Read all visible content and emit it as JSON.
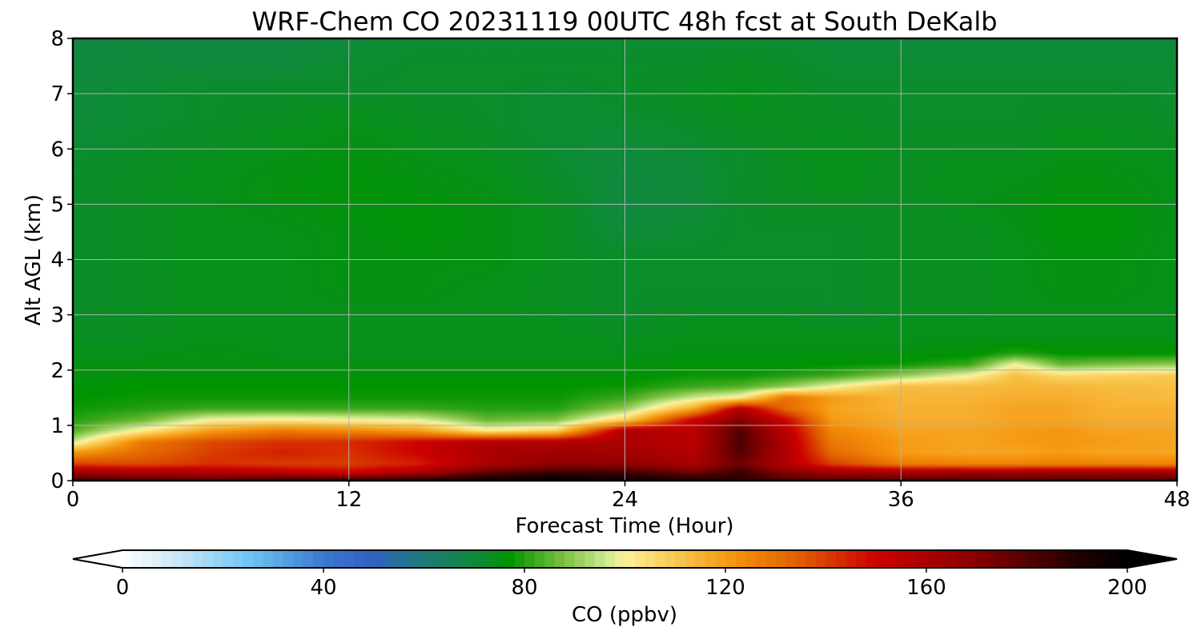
{
  "chart_data": {
    "type": "heatmap",
    "title": "WRF-Chem CO  20231119 00UTC 48h fcst at South DeKalb",
    "xlabel": "Forecast Time (Hour)",
    "ylabel": "Alt AGL (km)",
    "xlim": [
      0,
      48
    ],
    "ylim": [
      0,
      8
    ],
    "xticks": [
      0,
      12,
      24,
      36,
      48
    ],
    "yticks": [
      0,
      1,
      2,
      3,
      4,
      5,
      6,
      7,
      8
    ],
    "grid": true,
    "colorbar": {
      "label": "CO  (ppbv)",
      "orientation": "horizontal",
      "placement": "bottom",
      "range": [
        0,
        200
      ],
      "ticks": [
        0,
        40,
        80,
        120,
        160,
        200
      ],
      "extend": "both",
      "color_stops": [
        {
          "value": 0,
          "color": "#ffffff"
        },
        {
          "value": 10,
          "color": "#cfe9f8"
        },
        {
          "value": 25,
          "color": "#6ec6f2"
        },
        {
          "value": 40,
          "color": "#3a78d0"
        },
        {
          "value": 50,
          "color": "#2f62c0"
        },
        {
          "value": 60,
          "color": "#1e7a78"
        },
        {
          "value": 70,
          "color": "#0f8a3a"
        },
        {
          "value": 77,
          "color": "#009400"
        },
        {
          "value": 88,
          "color": "#80c040"
        },
        {
          "value": 96,
          "color": "#c8e890"
        },
        {
          "value": 100,
          "color": "#fff29a"
        },
        {
          "value": 110,
          "color": "#f8c850"
        },
        {
          "value": 122,
          "color": "#f5920a"
        },
        {
          "value": 135,
          "color": "#e05c00"
        },
        {
          "value": 150,
          "color": "#cc0000"
        },
        {
          "value": 170,
          "color": "#880000"
        },
        {
          "value": 190,
          "color": "#200000"
        },
        {
          "value": 200,
          "color": "#000000"
        }
      ]
    },
    "x_hours": [
      0,
      3,
      6,
      9,
      12,
      15,
      18,
      21,
      24,
      27,
      29,
      31,
      33,
      36,
      39,
      41,
      43,
      45,
      48
    ],
    "y_km": [
      0,
      0.15,
      0.3,
      0.5,
      0.7,
      0.9,
      1.1,
      1.3,
      1.5,
      1.7,
      1.9,
      2.1,
      2.3,
      2.6,
      3,
      3.5,
      4,
      4.5,
      5,
      5.5,
      6,
      6.5,
      7,
      7.5,
      8
    ],
    "values_ppbv": [
      [
        185,
        182,
        180,
        188,
        190,
        192,
        196,
        199,
        196,
        192,
        188,
        183,
        180,
        182,
        182,
        181,
        182,
        182,
        181
      ],
      [
        165,
        160,
        160,
        155,
        150,
        160,
        178,
        185,
        184,
        175,
        185,
        170,
        165,
        162,
        163,
        163,
        164,
        164,
        164
      ],
      [
        140,
        138,
        142,
        140,
        140,
        145,
        160,
        168,
        168,
        160,
        175,
        158,
        140,
        128,
        126,
        126,
        127,
        126,
        125
      ],
      [
        122,
        132,
        140,
        145,
        142,
        150,
        160,
        163,
        162,
        158,
        180,
        158,
        132,
        120,
        118,
        118,
        120,
        118,
        118
      ],
      [
        96,
        128,
        138,
        142,
        143,
        150,
        158,
        158,
        160,
        155,
        182,
        158,
        128,
        120,
        118,
        120,
        121,
        120,
        118
      ],
      [
        84,
        102,
        120,
        128,
        125,
        120,
        102,
        108,
        160,
        155,
        180,
        155,
        125,
        118,
        118,
        120,
        121,
        118,
        118
      ],
      [
        80,
        86,
        100,
        102,
        100,
        98,
        86,
        88,
        108,
        152,
        170,
        150,
        120,
        116,
        116,
        118,
        118,
        116,
        116
      ],
      [
        78,
        80,
        82,
        82,
        82,
        82,
        80,
        80,
        90,
        118,
        158,
        132,
        118,
        115,
        116,
        118,
        118,
        115,
        115
      ],
      [
        77,
        78,
        78,
        78,
        78,
        78,
        78,
        78,
        82,
        96,
        102,
        130,
        120,
        114,
        114,
        116,
        116,
        114,
        113
      ],
      [
        76,
        77,
        77,
        77,
        77,
        77,
        77,
        77,
        78,
        82,
        84,
        90,
        100,
        113,
        113,
        114,
        114,
        113,
        112
      ],
      [
        75,
        76,
        76,
        76,
        76,
        76,
        76,
        76,
        76,
        78,
        78,
        80,
        82,
        90,
        100,
        112,
        106,
        108,
        110
      ],
      [
        75,
        75,
        75,
        75,
        75,
        75,
        75,
        75,
        75,
        76,
        76,
        76,
        77,
        78,
        82,
        100,
        86,
        88,
        90
      ],
      [
        74,
        74,
        75,
        74,
        74,
        74,
        74,
        74,
        74,
        75,
        75,
        75,
        75,
        75,
        76,
        80,
        77,
        77,
        77
      ],
      [
        73,
        73,
        74,
        74,
        74,
        74,
        74,
        74,
        73,
        74,
        74,
        74,
        74,
        74,
        74,
        74,
        74,
        74,
        74
      ],
      [
        72,
        73,
        74,
        74,
        74,
        74,
        74,
        73,
        72,
        73,
        73,
        73,
        72,
        73,
        73,
        74,
        74,
        74,
        74
      ],
      [
        72,
        73,
        74,
        74,
        75,
        75,
        74,
        73,
        72,
        72,
        72,
        72,
        72,
        73,
        73,
        74,
        75,
        75,
        74
      ],
      [
        72,
        73,
        74,
        74,
        75,
        75,
        75,
        73,
        72,
        72,
        72,
        72,
        72,
        73,
        73,
        74,
        75,
        75,
        74
      ],
      [
        72,
        73,
        74,
        74,
        75,
        76,
        75,
        73,
        70,
        71,
        72,
        72,
        72,
        73,
        73,
        74,
        76,
        76,
        74
      ],
      [
        72,
        73,
        74,
        75,
        76,
        76,
        75,
        73,
        69,
        70,
        72,
        73,
        73,
        73,
        74,
        75,
        76,
        76,
        74
      ],
      [
        72,
        73,
        74,
        75,
        76,
        75,
        74,
        72,
        69,
        70,
        72,
        73,
        74,
        73,
        74,
        74,
        75,
        75,
        74
      ],
      [
        71,
        72,
        73,
        74,
        75,
        74,
        73,
        71,
        70,
        71,
        72,
        73,
        74,
        73,
        73,
        73,
        74,
        74,
        73
      ],
      [
        70,
        71,
        72,
        73,
        74,
        73,
        72,
        71,
        71,
        72,
        73,
        73,
        73,
        72,
        72,
        72,
        73,
        73,
        72
      ],
      [
        70,
        71,
        72,
        72,
        72,
        72,
        72,
        71,
        72,
        73,
        74,
        73,
        72,
        72,
        72,
        72,
        72,
        72,
        71
      ],
      [
        69,
        70,
        70,
        70,
        71,
        72,
        72,
        72,
        72,
        72,
        73,
        72,
        71,
        71,
        71,
        71,
        71,
        71,
        71
      ],
      [
        69,
        69,
        68,
        68,
        70,
        71,
        71,
        71,
        71,
        71,
        71,
        71,
        70,
        70,
        70,
        70,
        70,
        70,
        70
      ]
    ]
  }
}
